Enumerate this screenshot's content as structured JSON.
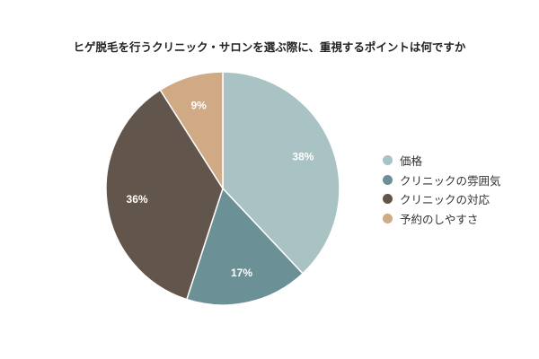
{
  "chart_data": {
    "type": "pie",
    "title": "ヒゲ脱毛を行うクリニック・サロンを選ぶ際に、重視するポイントは何ですか",
    "categories": [
      "価格",
      "クリニックの雰囲気",
      "クリニックの対応",
      "予約のしやすさ"
    ],
    "values": [
      38,
      17,
      36,
      9
    ],
    "data_labels": [
      "38%",
      "17%",
      "36%",
      "9%"
    ],
    "colors": [
      "#a9c2c3",
      "#6b9095",
      "#62554b",
      "#d0a985"
    ],
    "legend_position": "right",
    "start_angle": "top",
    "direction": "clockwise"
  }
}
